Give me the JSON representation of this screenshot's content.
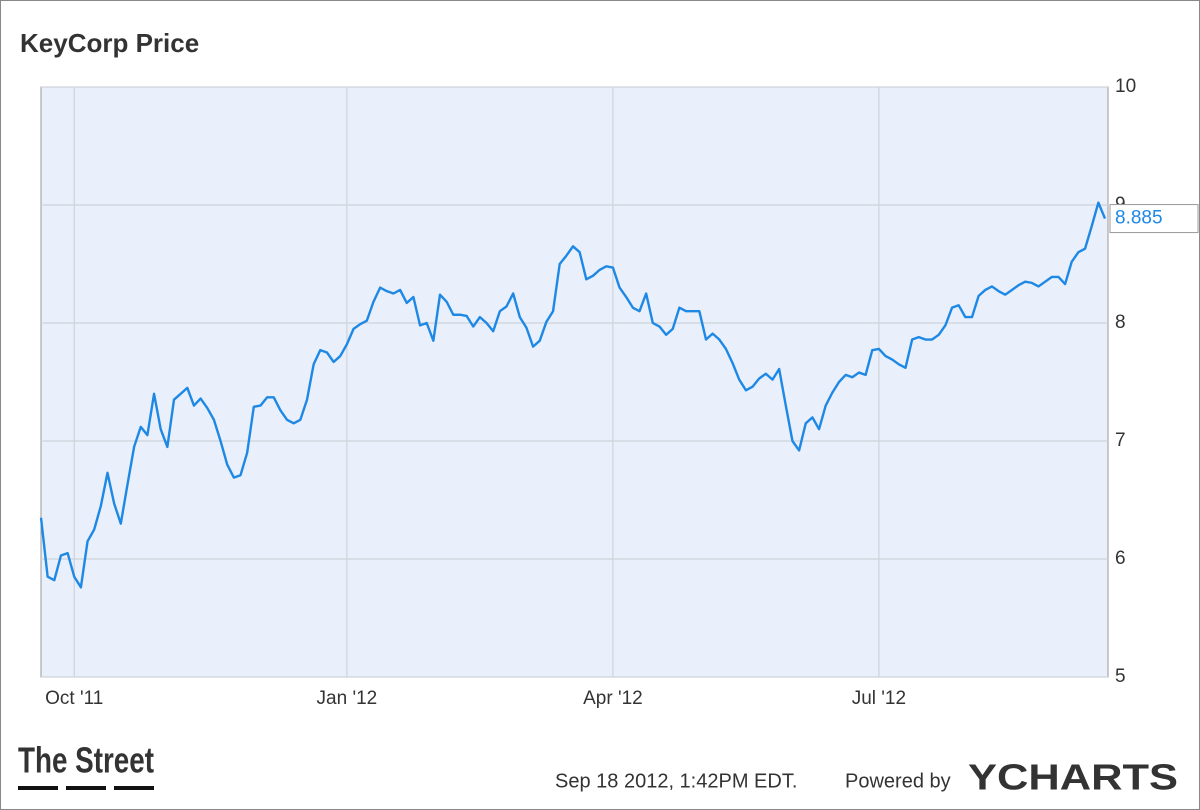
{
  "chart_data": {
    "type": "line",
    "title": "KeyCorp Price",
    "categories": [
      null,
      null,
      null,
      null,
      null,
      "Oct '11",
      null,
      null,
      null,
      null,
      null,
      null,
      null,
      null,
      null,
      null,
      null,
      null,
      null,
      null,
      null,
      null,
      null,
      null,
      null,
      null,
      null,
      null,
      null,
      null,
      null,
      null,
      null,
      null,
      null,
      null,
      null,
      null,
      null,
      null,
      null,
      null,
      null,
      null,
      null,
      null,
      "Jan '12",
      null,
      null,
      null,
      null,
      null,
      null,
      null,
      null,
      null,
      null,
      null,
      null,
      null,
      null,
      null,
      null,
      null,
      null,
      null,
      null,
      null,
      null,
      null,
      null,
      null,
      null,
      null,
      null,
      null,
      null,
      null,
      null,
      null,
      null,
      null,
      null,
      null,
      null,
      null,
      "Apr '12",
      null,
      null,
      null,
      null,
      null,
      null,
      null,
      null,
      null,
      null,
      null,
      null,
      null,
      null,
      null,
      null,
      null,
      null,
      null,
      null,
      null,
      null,
      null,
      null,
      null,
      null,
      null,
      null,
      null,
      null,
      null,
      null,
      null,
      null,
      null,
      null,
      null,
      null,
      null,
      "Jul '12",
      null,
      null,
      null,
      null,
      null,
      null,
      null,
      null,
      null,
      null,
      null,
      null,
      null,
      null,
      null,
      null,
      null,
      null,
      null,
      null,
      null,
      null,
      null,
      null,
      null,
      null,
      null,
      null,
      null,
      null,
      null,
      null,
      null,
      null
    ],
    "values": [
      6.35,
      5.85,
      5.82,
      6.03,
      6.05,
      5.85,
      5.76,
      6.15,
      6.25,
      6.45,
      6.73,
      6.47,
      6.3,
      6.63,
      6.95,
      7.12,
      7.05,
      7.4,
      7.1,
      6.95,
      7.35,
      7.4,
      7.45,
      7.3,
      7.36,
      7.28,
      7.18,
      7.0,
      6.8,
      6.69,
      6.71,
      6.9,
      7.29,
      7.3,
      7.37,
      7.37,
      7.26,
      7.18,
      7.15,
      7.18,
      7.35,
      7.65,
      7.77,
      7.75,
      7.67,
      7.72,
      7.82,
      7.95,
      7.99,
      8.02,
      8.18,
      8.3,
      8.27,
      8.25,
      8.28,
      8.17,
      8.22,
      7.98,
      8.0,
      7.85,
      8.24,
      8.18,
      8.07,
      8.07,
      8.06,
      7.97,
      8.05,
      8.0,
      7.93,
      8.1,
      8.14,
      8.25,
      8.05,
      7.96,
      7.8,
      7.85,
      8.01,
      8.1,
      8.5,
      8.57,
      8.65,
      8.6,
      8.37,
      8.4,
      8.45,
      8.48,
      8.47,
      8.3,
      8.22,
      8.13,
      8.1,
      8.25,
      8.0,
      7.97,
      7.9,
      7.95,
      8.13,
      8.1,
      8.1,
      8.1,
      7.86,
      7.91,
      7.86,
      7.78,
      7.66,
      7.52,
      7.43,
      7.46,
      7.53,
      7.57,
      7.52,
      7.61,
      7.3,
      7.0,
      6.92,
      7.15,
      7.2,
      7.1,
      7.3,
      7.41,
      7.5,
      7.56,
      7.54,
      7.58,
      7.56,
      7.77,
      7.78,
      7.72,
      7.69,
      7.65,
      7.62,
      7.86,
      7.88,
      7.86,
      7.86,
      7.9,
      7.98,
      8.13,
      8.15,
      8.05,
      8.05,
      8.23,
      8.28,
      8.31,
      8.27,
      8.24,
      8.28,
      8.32,
      8.35,
      8.34,
      8.31,
      8.35,
      8.39,
      8.39,
      8.33,
      8.52,
      8.6,
      8.63,
      8.82,
      9.02,
      8.885
    ],
    "color": "#1e88e5",
    "ylim": [
      5,
      10
    ],
    "yticks": [
      5,
      6,
      7,
      8,
      9,
      10
    ],
    "grid": true,
    "y_axis_side": "right"
  },
  "footer": {
    "logo": "The Street",
    "timestamp": "Sep 18 2012, 1:42PM EDT.",
    "powered_by": "Powered by",
    "brand": "YCHARTS"
  }
}
